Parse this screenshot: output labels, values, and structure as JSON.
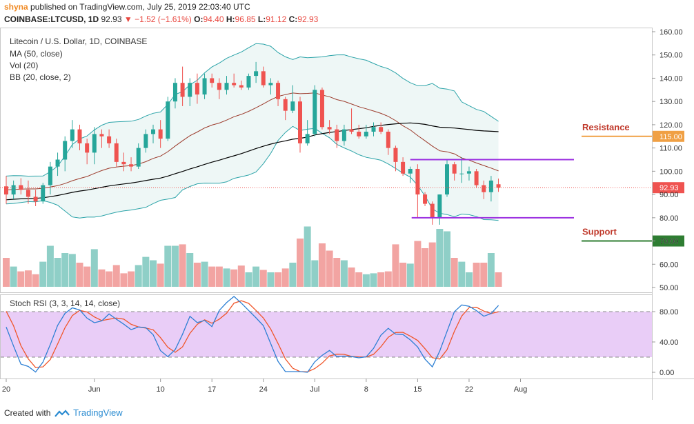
{
  "header": {
    "user": "shyna",
    "published": "published on TradingView.com, July 25, 2019 22:03:40 UTC",
    "symbol": "COINBASE:LTCUSD, 1D",
    "last": "92.93",
    "change": "−1.52 (−1.61%)",
    "o_label": "O:",
    "o": "94.40",
    "h_label": "H:",
    "h": "96.85",
    "l_label": "L:",
    "l": "91.12",
    "c_label": "C:",
    "c": "92.93"
  },
  "legend": {
    "title": "Litecoin / U.S. Dollar, 1D, COINBASE",
    "ma": "MA (50, close)",
    "vol": "Vol (20)",
    "bb": "BB (20, close, 2)",
    "stoch": "Stoch RSI (3, 3, 14, 14, close)"
  },
  "annotations": {
    "resistance_label": "Resistance",
    "resistance_value": "115.00",
    "support_label": "Support",
    "support_value": "70.00",
    "last_price_tag": "92.93"
  },
  "footer": {
    "created": "Created with",
    "brand": "TradingView"
  },
  "colors": {
    "up": "#26a69a",
    "down": "#ef5350",
    "up_vol": "#8fcfc7",
    "down_vol": "#f2a4a2",
    "bb": "#2aa3a8",
    "bb_fill": "#eef7f6",
    "ma50": "#000000",
    "bb_basis": "#9c3a2b",
    "stoch_k": "#2c7fd4",
    "stoch_d": "#f0562a",
    "stoch_band": "#e9cdf7",
    "resistance": "#f0a044",
    "support": "#2e7d32",
    "channel": "#9b2fe0",
    "label_red": "#c0392b"
  },
  "chart_data": {
    "type": "candlestick",
    "x_tick_labels": [
      "20",
      "Jun",
      "10",
      "17",
      "24",
      "Jul",
      "8",
      "15",
      "22",
      "Aug"
    ],
    "x_tick_days": [
      0,
      12,
      21,
      28,
      35,
      42,
      49,
      56,
      63,
      70
    ],
    "price_axis": {
      "ylim": [
        48,
        162
      ],
      "ticks": [
        50,
        60,
        70,
        80,
        90,
        100,
        110,
        120,
        130,
        140,
        150,
        160
      ],
      "tick_labels": [
        "50.00",
        "60.00",
        "70.00",
        "80.00",
        "90.00",
        "100.00",
        "110.00",
        "120.00",
        "130.00",
        "140.00",
        "150.00",
        "160.00"
      ]
    },
    "stoch_axis": {
      "ylim": [
        -7,
        107
      ],
      "ticks": [
        0,
        40,
        80
      ],
      "tick_labels": [
        "0.00",
        "40.00",
        "80.00"
      ],
      "bands": [
        20,
        80
      ]
    },
    "candles": [
      [
        0,
        93.5,
        98,
        86,
        90
      ],
      [
        1,
        90,
        96,
        88,
        94
      ],
      [
        2,
        94,
        97,
        90,
        92
      ],
      [
        3,
        92,
        96,
        86,
        89
      ],
      [
        4,
        89,
        92,
        85,
        87
      ],
      [
        5,
        87,
        95,
        86,
        94
      ],
      [
        6,
        94,
        104,
        90,
        102
      ],
      [
        7,
        102,
        108,
        98,
        105
      ],
      [
        8,
        105,
        115,
        100,
        113
      ],
      [
        9,
        113,
        122,
        110,
        118
      ],
      [
        10,
        118,
        120,
        109,
        112
      ],
      [
        11,
        112,
        114,
        103,
        108
      ],
      [
        12,
        108,
        119,
        103,
        116
      ],
      [
        13,
        116,
        118,
        110,
        115
      ],
      [
        14,
        115,
        118,
        110,
        112
      ],
      [
        15,
        112,
        114,
        102,
        104
      ],
      [
        16,
        104,
        108,
        100,
        103
      ],
      [
        17,
        103,
        106,
        100,
        102
      ],
      [
        18,
        102,
        112,
        101,
        110
      ],
      [
        19,
        110,
        118,
        108,
        116
      ],
      [
        20,
        116,
        120,
        112,
        118
      ],
      [
        21,
        118,
        122,
        110,
        114
      ],
      [
        22,
        114,
        132,
        113,
        130
      ],
      [
        23,
        130,
        140,
        127,
        138
      ],
      [
        24,
        138,
        145,
        128,
        132
      ],
      [
        25,
        132,
        140,
        128,
        138
      ],
      [
        26,
        138,
        142,
        129,
        133
      ],
      [
        27,
        133,
        142,
        131,
        140
      ],
      [
        28,
        140,
        142,
        136,
        138
      ],
      [
        29,
        138,
        140,
        131,
        135
      ],
      [
        30,
        135,
        141,
        133,
        138
      ],
      [
        31,
        138,
        142,
        136,
        137
      ],
      [
        32,
        137,
        139,
        135,
        136
      ],
      [
        33,
        136,
        142,
        135,
        141
      ],
      [
        34,
        141,
        147,
        138,
        143
      ],
      [
        35,
        143,
        145,
        136,
        137
      ],
      [
        36,
        137,
        140,
        133,
        138
      ],
      [
        37,
        138,
        139,
        128,
        131
      ],
      [
        38,
        131,
        132,
        122,
        126
      ],
      [
        39,
        126,
        137,
        125,
        130
      ],
      [
        40,
        130,
        132,
        108,
        112
      ],
      [
        41,
        112,
        122,
        111,
        116
      ],
      [
        42,
        116,
        137,
        115,
        135
      ],
      [
        43,
        135,
        136,
        118,
        119
      ],
      [
        44,
        119,
        122,
        116,
        118
      ],
      [
        45,
        118,
        120,
        110,
        113
      ],
      [
        46,
        113,
        120,
        111,
        118
      ],
      [
        47,
        118,
        127,
        116,
        117
      ],
      [
        48,
        117,
        120,
        114,
        115
      ],
      [
        49,
        115,
        120,
        114,
        117
      ],
      [
        50,
        117,
        121,
        115,
        119
      ],
      [
        51,
        119,
        121,
        116,
        117
      ],
      [
        52,
        117,
        118,
        107,
        110
      ],
      [
        53,
        110,
        111,
        100,
        104
      ],
      [
        54,
        104,
        106,
        98,
        99
      ],
      [
        55,
        99,
        102,
        95,
        101
      ],
      [
        56,
        101,
        103,
        80,
        90
      ],
      [
        57,
        90,
        91,
        85,
        86
      ],
      [
        58,
        86,
        87,
        77,
        80
      ],
      [
        59,
        80,
        90,
        77,
        90
      ],
      [
        60,
        90,
        105,
        89,
        103
      ],
      [
        61,
        103,
        104,
        96,
        99
      ],
      [
        62,
        99,
        106,
        95,
        99
      ],
      [
        63,
        99,
        102,
        96,
        100
      ],
      [
        64,
        100,
        101,
        93,
        94
      ],
      [
        65,
        94,
        96,
        88,
        91
      ],
      [
        66,
        91,
        98,
        87,
        96
      ],
      [
        67,
        94.4,
        96.85,
        91.12,
        92.93
      ]
    ],
    "volume_heights_rel": [
      0.6,
      0.42,
      0.32,
      0.34,
      0.26,
      0.52,
      0.85,
      0.6,
      0.7,
      0.68,
      0.5,
      0.42,
      0.78,
      0.36,
      0.32,
      0.45,
      0.28,
      0.32,
      0.45,
      0.62,
      0.55,
      0.48,
      0.85,
      0.85,
      0.88,
      0.7,
      0.5,
      0.52,
      0.42,
      0.42,
      0.38,
      0.36,
      0.44,
      0.3,
      0.42,
      0.35,
      0.3,
      0.3,
      0.38,
      0.5,
      1.0,
      1.25,
      0.55,
      0.9,
      0.75,
      0.6,
      0.55,
      0.4,
      0.3,
      0.26,
      0.28,
      0.3,
      0.32,
      0.88,
      0.5,
      0.48,
      0.95,
      0.8,
      0.92,
      1.2,
      1.15,
      0.6,
      0.52,
      0.3,
      0.5,
      0.5,
      0.7,
      0.3
    ]
  }
}
